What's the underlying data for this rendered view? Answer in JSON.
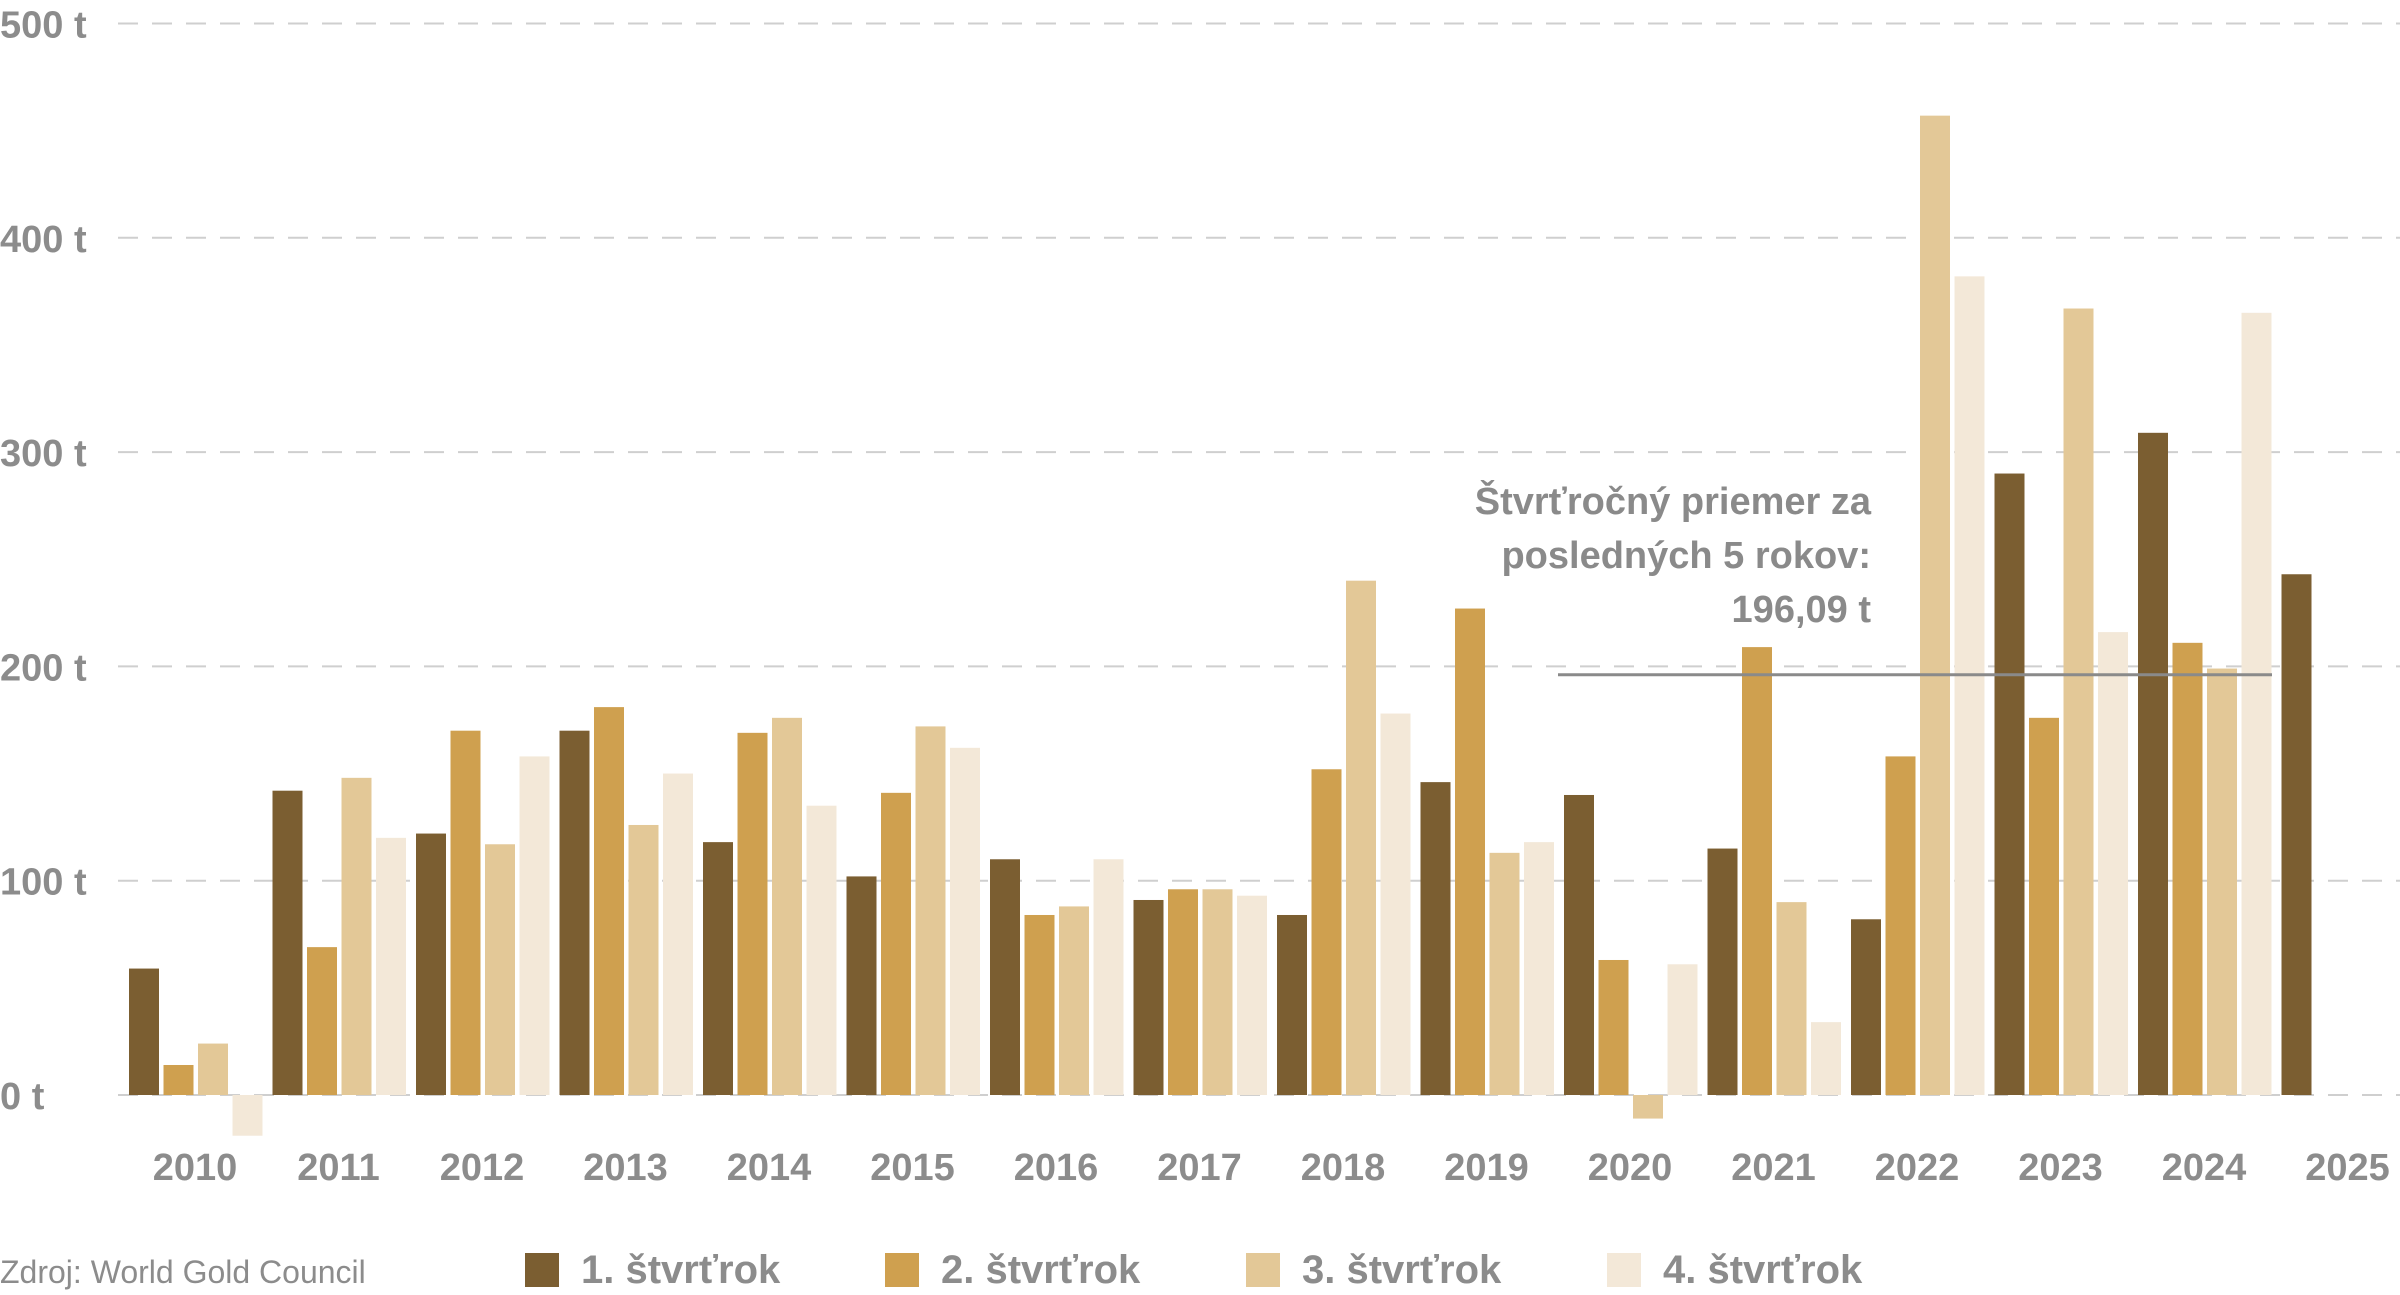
{
  "chart_data": {
    "type": "bar",
    "title": "",
    "xlabel": "",
    "ylabel": "",
    "unit": "t",
    "ylim": [
      0,
      500
    ],
    "yticks": [
      "0 t",
      "100 t",
      "200 t",
      "300 t",
      "400 t",
      "500 t"
    ],
    "ytick_values": [
      0,
      100,
      200,
      300,
      400,
      500
    ],
    "x_tick_labels": [
      "2010",
      "2011",
      "2012",
      "2013",
      "2014",
      "2015",
      "2016",
      "2017",
      "2018",
      "2019",
      "2020",
      "2021",
      "2022",
      "2023",
      "2024",
      "2025"
    ],
    "grid": true,
    "legend_position": "bottom",
    "series": [
      {
        "name": "1. štvrťrok",
        "color": "#7b5e31",
        "values": [
          59,
          142,
          122,
          170,
          118,
          102,
          110,
          91,
          84,
          146,
          140,
          115,
          82,
          290,
          309,
          243
        ]
      },
      {
        "name": "2. štvrťrok",
        "color": "#cfa04f",
        "values": [
          14,
          69,
          170,
          181,
          169,
          141,
          84,
          96,
          152,
          227,
          63,
          209,
          158,
          176,
          211,
          null
        ]
      },
      {
        "name": "3. štvrťrok",
        "color": "#e3c897",
        "values": [
          24,
          148,
          117,
          126,
          176,
          172,
          88,
          96,
          240,
          113,
          -11,
          90,
          457,
          367,
          199,
          null
        ]
      },
      {
        "name": "4. štvrťrok",
        "color": "#f3e8d8",
        "values": [
          -19,
          120,
          158,
          150,
          135,
          162,
          110,
          93,
          178,
          118,
          61,
          34,
          382,
          216,
          365,
          null
        ]
      }
    ],
    "reference_line": {
      "value": 196.09,
      "from_year": "2020",
      "label_lines": [
        "Štvrťročný priemer za",
        "posledných 5 rokov:",
        "196,09 t"
      ],
      "color": "#8a8a8a"
    },
    "grid_color": "#cfcfcf"
  },
  "source_label": "Zdroj: World Gold Council"
}
